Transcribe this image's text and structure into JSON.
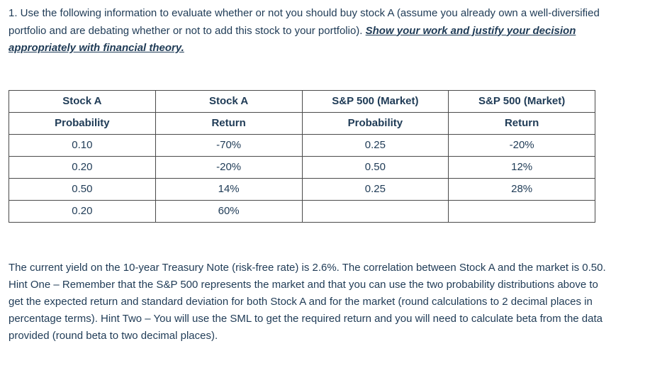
{
  "question": {
    "intro": "1. Use the following information to evaluate whether or not you should buy stock A (assume you already own a well-diversified portfolio and are debating whether or not to add this stock to your portfolio).  ",
    "emphasis": "Show your work and justify your decision appropriately with financial theory."
  },
  "table": {
    "headers_row1": [
      "Stock A",
      "Stock A",
      "S&P 500 (Market)",
      "S&P 500 (Market)"
    ],
    "headers_row2": [
      "Probability",
      "Return",
      "Probability",
      "Return"
    ],
    "rows": [
      [
        "0.10",
        "-70%",
        "0.25",
        "-20%"
      ],
      [
        "0.20",
        "-20%",
        "0.50",
        "12%"
      ],
      [
        "0.50",
        "14%",
        "0.25",
        "28%"
      ],
      [
        "0.20",
        "60%",
        "",
        ""
      ]
    ]
  },
  "paragraph": "The current yield on the 10-year Treasury Note (risk-free rate) is 2.6%.  The correlation between Stock A and the market is 0.50.  Hint One – Remember that the S&P 500 represents the market and that you can use the two probability distributions above to get the expected return and standard deviation for both Stock A and for the market (round calculations to 2 decimal places in percentage terms).  Hint Two – You will use the SML to get the required return and you will need to calculate beta from the data provided (round beta to two decimal places)."
}
